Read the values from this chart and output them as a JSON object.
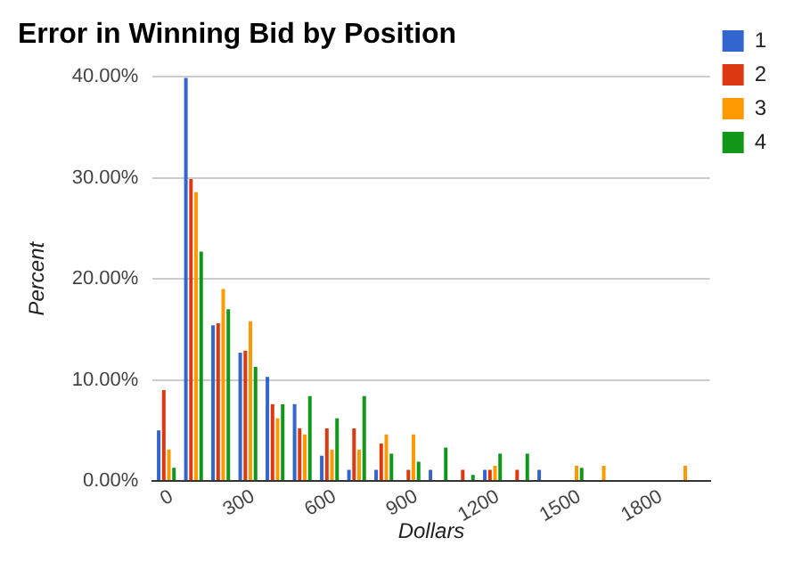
{
  "chart_data": {
    "type": "bar",
    "title": "Error in Winning Bid by Position",
    "xlabel": "Dollars",
    "ylabel": "Percent",
    "x": [
      0,
      100,
      200,
      300,
      400,
      500,
      600,
      700,
      800,
      900,
      1000,
      1100,
      1200,
      1300,
      1400,
      1500,
      1600,
      1700,
      1800,
      1900
    ],
    "series": [
      {
        "name": "1",
        "color": "#3366cc",
        "values": [
          5.0,
          39.9,
          15.4,
          12.7,
          10.3,
          7.6,
          2.5,
          1.1,
          1.1,
          null,
          1.1,
          null,
          1.1,
          null,
          1.1,
          null,
          null,
          null,
          null,
          null
        ]
      },
      {
        "name": "2",
        "color": "#dc3912",
        "values": [
          9.0,
          29.9,
          15.6,
          12.9,
          7.6,
          5.2,
          5.2,
          5.2,
          3.7,
          1.1,
          null,
          1.1,
          1.1,
          1.1,
          null,
          null,
          null,
          null,
          null,
          null
        ]
      },
      {
        "name": "3",
        "color": "#ff9900",
        "values": [
          3.1,
          28.6,
          19.0,
          15.8,
          6.2,
          4.6,
          3.1,
          3.1,
          4.6,
          4.6,
          null,
          null,
          1.5,
          null,
          null,
          1.5,
          1.5,
          null,
          null,
          1.5
        ]
      },
      {
        "name": "4",
        "color": "#109618",
        "values": [
          1.3,
          22.7,
          17.0,
          11.3,
          7.6,
          8.4,
          6.2,
          8.4,
          2.7,
          1.9,
          3.3,
          0.6,
          2.7,
          2.7,
          null,
          1.3,
          null,
          null,
          null,
          null
        ]
      }
    ],
    "xlim": [
      -50,
      2000
    ],
    "xticks": [
      0,
      300,
      600,
      900,
      1200,
      1500,
      1800
    ],
    "ylim": [
      0,
      40
    ],
    "yticks": [
      {
        "value": 0,
        "label": "0.00%"
      },
      {
        "value": 10,
        "label": "10.00%"
      },
      {
        "value": 20,
        "label": "20.00%"
      },
      {
        "value": 30,
        "label": "30.00%"
      },
      {
        "value": 40,
        "label": "40.00%"
      }
    ],
    "grid": "y",
    "legend": "right"
  }
}
